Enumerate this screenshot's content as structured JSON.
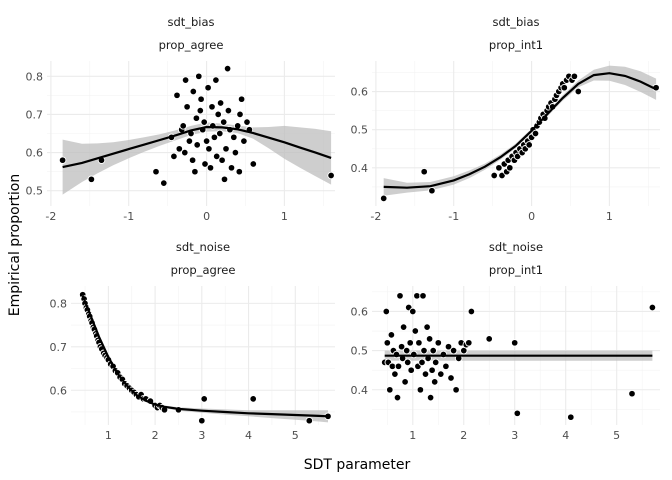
{
  "chart_data": {
    "type": "scatter",
    "xlabel": "SDT parameter",
    "ylabel": "Empirical proportion",
    "colors": {
      "points": "#000000",
      "point_outline": "#ffffff",
      "fit": "#000000",
      "band": "#bdbdbd",
      "grid": "#ebebeb"
    },
    "panels": [
      {
        "strip_top": "sdt_bias",
        "strip_bottom": "prop_agree",
        "xlim": [
          -2.05,
          1.65
        ],
        "ylim": [
          0.46,
          0.84
        ],
        "xticks": [
          -2,
          -1,
          0,
          1
        ],
        "yticks": [
          0.5,
          0.6,
          0.7,
          0.8
        ],
        "points": [
          [
            -1.85,
            0.58
          ],
          [
            -1.48,
            0.53
          ],
          [
            -1.35,
            0.58
          ],
          [
            -0.65,
            0.55
          ],
          [
            -0.55,
            0.52
          ],
          [
            -0.45,
            0.64
          ],
          [
            -0.42,
            0.59
          ],
          [
            -0.38,
            0.75
          ],
          [
            -0.35,
            0.61
          ],
          [
            -0.32,
            0.66
          ],
          [
            -0.3,
            0.67
          ],
          [
            -0.28,
            0.6
          ],
          [
            -0.27,
            0.79
          ],
          [
            -0.25,
            0.72
          ],
          [
            -0.22,
            0.63
          ],
          [
            -0.2,
            0.65
          ],
          [
            -0.18,
            0.58
          ],
          [
            -0.17,
            0.76
          ],
          [
            -0.15,
            0.55
          ],
          [
            -0.13,
            0.69
          ],
          [
            -0.12,
            0.62
          ],
          [
            -0.1,
            0.8
          ],
          [
            -0.08,
            0.71
          ],
          [
            -0.07,
            0.74
          ],
          [
            -0.05,
            0.66
          ],
          [
            -0.03,
            0.68
          ],
          [
            -0.02,
            0.57
          ],
          [
            0.0,
            0.63
          ],
          [
            0.02,
            0.77
          ],
          [
            0.03,
            0.61
          ],
          [
            0.05,
            0.56
          ],
          [
            0.07,
            0.72
          ],
          [
            0.08,
            0.67
          ],
          [
            0.1,
            0.64
          ],
          [
            0.12,
            0.79
          ],
          [
            0.13,
            0.59
          ],
          [
            0.15,
            0.7
          ],
          [
            0.17,
            0.65
          ],
          [
            0.18,
            0.73
          ],
          [
            0.2,
            0.58
          ],
          [
            0.22,
            0.68
          ],
          [
            0.23,
            0.53
          ],
          [
            0.25,
            0.61
          ],
          [
            0.27,
            0.82
          ],
          [
            0.28,
            0.71
          ],
          [
            0.3,
            0.66
          ],
          [
            0.32,
            0.56
          ],
          [
            0.35,
            0.64
          ],
          [
            0.37,
            0.6
          ],
          [
            0.4,
            0.67
          ],
          [
            0.42,
            0.55
          ],
          [
            0.43,
            0.7
          ],
          [
            0.45,
            0.74
          ],
          [
            0.48,
            0.63
          ],
          [
            0.52,
            0.68
          ],
          [
            0.55,
            0.66
          ],
          [
            0.6,
            0.57
          ],
          [
            1.6,
            0.54
          ]
        ],
        "fit": {
          "x": [
            -1.85,
            -1.6,
            -1.4,
            -1.2,
            -1.0,
            -0.8,
            -0.6,
            -0.4,
            -0.2,
            0.0,
            0.2,
            0.4,
            0.6,
            0.8,
            1.0,
            1.2,
            1.4,
            1.6
          ],
          "y": [
            0.562,
            0.573,
            0.585,
            0.597,
            0.609,
            0.621,
            0.633,
            0.645,
            0.658,
            0.667,
            0.666,
            0.661,
            0.651,
            0.639,
            0.627,
            0.613,
            0.6,
            0.586
          ],
          "lower": [
            0.49,
            0.523,
            0.546,
            0.567,
            0.585,
            0.602,
            0.618,
            0.632,
            0.646,
            0.655,
            0.656,
            0.651,
            0.636,
            0.611,
            0.584,
            0.56,
            0.538,
            0.516
          ],
          "upper": [
            0.634,
            0.623,
            0.624,
            0.627,
            0.633,
            0.64,
            0.648,
            0.658,
            0.67,
            0.679,
            0.676,
            0.671,
            0.666,
            0.667,
            0.67,
            0.666,
            0.662,
            0.656
          ]
        }
      },
      {
        "strip_top": "sdt_bias",
        "strip_bottom": "prop_int1",
        "xlim": [
          -2.05,
          1.65
        ],
        "ylim": [
          0.3,
          0.68
        ],
        "xticks": [
          -2,
          -1,
          0,
          1
        ],
        "yticks": [
          0.4,
          0.5,
          0.6
        ],
        "points": [
          [
            -1.9,
            0.32
          ],
          [
            -1.38,
            0.39
          ],
          [
            -1.28,
            0.34
          ],
          [
            -0.48,
            0.38
          ],
          [
            -0.42,
            0.4
          ],
          [
            -0.38,
            0.38
          ],
          [
            -0.35,
            0.41
          ],
          [
            -0.32,
            0.39
          ],
          [
            -0.3,
            0.42
          ],
          [
            -0.28,
            0.4
          ],
          [
            -0.25,
            0.43
          ],
          [
            -0.22,
            0.42
          ],
          [
            -0.2,
            0.44
          ],
          [
            -0.18,
            0.43
          ],
          [
            -0.15,
            0.45
          ],
          [
            -0.12,
            0.44
          ],
          [
            -0.1,
            0.46
          ],
          [
            -0.08,
            0.45
          ],
          [
            -0.05,
            0.47
          ],
          [
            -0.03,
            0.46
          ],
          [
            0.0,
            0.48
          ],
          [
            0.02,
            0.5
          ],
          [
            0.05,
            0.49
          ],
          [
            0.07,
            0.51
          ],
          [
            0.1,
            0.52
          ],
          [
            0.12,
            0.53
          ],
          [
            0.15,
            0.54
          ],
          [
            0.17,
            0.53
          ],
          [
            0.2,
            0.55
          ],
          [
            0.22,
            0.56
          ],
          [
            0.25,
            0.57
          ],
          [
            0.27,
            0.56
          ],
          [
            0.3,
            0.58
          ],
          [
            0.32,
            0.59
          ],
          [
            0.35,
            0.6
          ],
          [
            0.38,
            0.61
          ],
          [
            0.4,
            0.62
          ],
          [
            0.42,
            0.61
          ],
          [
            0.45,
            0.63
          ],
          [
            0.48,
            0.64
          ],
          [
            0.52,
            0.63
          ],
          [
            0.55,
            0.64
          ],
          [
            0.6,
            0.6
          ],
          [
            1.6,
            0.61
          ]
        ],
        "fit": {
          "x": [
            -1.9,
            -1.6,
            -1.3,
            -1.0,
            -0.8,
            -0.6,
            -0.4,
            -0.2,
            0.0,
            0.2,
            0.4,
            0.6,
            0.8,
            1.0,
            1.2,
            1.4,
            1.6
          ],
          "y": [
            0.35,
            0.348,
            0.352,
            0.367,
            0.383,
            0.403,
            0.428,
            0.458,
            0.497,
            0.54,
            0.583,
            0.62,
            0.643,
            0.648,
            0.641,
            0.626,
            0.606
          ],
          "lower": [
            0.327,
            0.335,
            0.341,
            0.356,
            0.373,
            0.395,
            0.421,
            0.452,
            0.491,
            0.534,
            0.576,
            0.611,
            0.629,
            0.628,
            0.617,
            0.599,
            0.578
          ],
          "upper": [
            0.373,
            0.361,
            0.363,
            0.378,
            0.393,
            0.411,
            0.435,
            0.464,
            0.503,
            0.546,
            0.59,
            0.629,
            0.657,
            0.668,
            0.665,
            0.653,
            0.634
          ]
        }
      },
      {
        "strip_top": "sdt_noise",
        "strip_bottom": "prop_agree",
        "xlim": [
          0.2,
          5.85
        ],
        "ylim": [
          0.52,
          0.84
        ],
        "xticks": [
          1,
          2,
          3,
          4,
          5
        ],
        "yticks": [
          0.6,
          0.7,
          0.8
        ],
        "points": [
          [
            0.45,
            0.82
          ],
          [
            0.48,
            0.81
          ],
          [
            0.5,
            0.8
          ],
          [
            0.53,
            0.79
          ],
          [
            0.55,
            0.785
          ],
          [
            0.58,
            0.775
          ],
          [
            0.6,
            0.77
          ],
          [
            0.63,
            0.76
          ],
          [
            0.65,
            0.755
          ],
          [
            0.68,
            0.745
          ],
          [
            0.7,
            0.74
          ],
          [
            0.73,
            0.73
          ],
          [
            0.75,
            0.725
          ],
          [
            0.78,
            0.715
          ],
          [
            0.8,
            0.71
          ],
          [
            0.83,
            0.7
          ],
          [
            0.86,
            0.695
          ],
          [
            0.9,
            0.685
          ],
          [
            0.93,
            0.68
          ],
          [
            0.97,
            0.675
          ],
          [
            1.0,
            0.67
          ],
          [
            1.05,
            0.66
          ],
          [
            1.1,
            0.655
          ],
          [
            1.15,
            0.645
          ],
          [
            1.2,
            0.64
          ],
          [
            1.25,
            0.63
          ],
          [
            1.3,
            0.625
          ],
          [
            1.35,
            0.615
          ],
          [
            1.4,
            0.61
          ],
          [
            1.45,
            0.605
          ],
          [
            1.5,
            0.6
          ],
          [
            1.55,
            0.595
          ],
          [
            1.6,
            0.59
          ],
          [
            1.65,
            0.585
          ],
          [
            1.7,
            0.59
          ],
          [
            1.75,
            0.58
          ],
          [
            1.8,
            0.58
          ],
          [
            1.9,
            0.575
          ],
          [
            2.0,
            0.565
          ],
          [
            2.05,
            0.56
          ],
          [
            2.1,
            0.565
          ],
          [
            2.15,
            0.56
          ],
          [
            2.2,
            0.555
          ],
          [
            2.5,
            0.555
          ],
          [
            3.0,
            0.53
          ],
          [
            3.05,
            0.58
          ],
          [
            4.1,
            0.58
          ],
          [
            5.3,
            0.53
          ],
          [
            5.7,
            0.54
          ]
        ],
        "fit": {
          "x": [
            0.45,
            0.6,
            0.8,
            1.0,
            1.2,
            1.4,
            1.6,
            1.8,
            2.0,
            2.2,
            2.5,
            3.0,
            3.5,
            4.0,
            4.5,
            5.0,
            5.5,
            5.7
          ],
          "y": [
            0.818,
            0.777,
            0.723,
            0.676,
            0.638,
            0.61,
            0.589,
            0.576,
            0.567,
            0.562,
            0.557,
            0.553,
            0.55,
            0.547,
            0.545,
            0.543,
            0.541,
            0.54
          ],
          "lower": [
            0.813,
            0.773,
            0.72,
            0.673,
            0.636,
            0.608,
            0.587,
            0.574,
            0.565,
            0.559,
            0.553,
            0.548,
            0.544,
            0.54,
            0.536,
            0.532,
            0.528,
            0.526
          ],
          "upper": [
            0.823,
            0.781,
            0.726,
            0.679,
            0.64,
            0.612,
            0.591,
            0.578,
            0.569,
            0.565,
            0.561,
            0.558,
            0.556,
            0.554,
            0.554,
            0.554,
            0.554,
            0.554
          ]
        }
      },
      {
        "strip_top": "sdt_noise",
        "strip_bottom": "prop_int1",
        "xlim": [
          0.2,
          5.85
        ],
        "ylim": [
          0.31,
          0.665
        ],
        "xticks": [
          1,
          2,
          3,
          4,
          5
        ],
        "yticks": [
          0.4,
          0.5,
          0.6
        ],
        "points": [
          [
            0.45,
            0.47
          ],
          [
            0.48,
            0.6
          ],
          [
            0.5,
            0.52
          ],
          [
            0.52,
            0.47
          ],
          [
            0.55,
            0.4
          ],
          [
            0.58,
            0.54
          ],
          [
            0.6,
            0.46
          ],
          [
            0.62,
            0.5
          ],
          [
            0.65,
            0.44
          ],
          [
            0.68,
            0.49
          ],
          [
            0.7,
            0.38
          ],
          [
            0.72,
            0.46
          ],
          [
            0.75,
            0.64
          ],
          [
            0.78,
            0.51
          ],
          [
            0.8,
            0.48
          ],
          [
            0.82,
            0.56
          ],
          [
            0.85,
            0.42
          ],
          [
            0.88,
            0.5
          ],
          [
            0.9,
            0.47
          ],
          [
            0.92,
            0.61
          ],
          [
            0.95,
            0.52
          ],
          [
            0.97,
            0.45
          ],
          [
            1.0,
            0.6
          ],
          [
            1.02,
            0.49
          ],
          [
            1.05,
            0.55
          ],
          [
            1.08,
            0.64
          ],
          [
            1.1,
            0.46
          ],
          [
            1.12,
            0.52
          ],
          [
            1.15,
            0.4
          ],
          [
            1.18,
            0.47
          ],
          [
            1.2,
            0.64
          ],
          [
            1.22,
            0.5
          ],
          [
            1.25,
            0.44
          ],
          [
            1.28,
            0.56
          ],
          [
            1.3,
            0.48
          ],
          [
            1.33,
            0.53
          ],
          [
            1.35,
            0.38
          ],
          [
            1.38,
            0.45
          ],
          [
            1.4,
            0.5
          ],
          [
            1.43,
            0.42
          ],
          [
            1.45,
            0.47
          ],
          [
            1.5,
            0.52
          ],
          [
            1.55,
            0.44
          ],
          [
            1.6,
            0.49
          ],
          [
            1.65,
            0.46
          ],
          [
            1.7,
            0.51
          ],
          [
            1.75,
            0.43
          ],
          [
            1.8,
            0.5
          ],
          [
            1.85,
            0.4
          ],
          [
            1.9,
            0.48
          ],
          [
            1.95,
            0.52
          ],
          [
            2.0,
            0.5
          ],
          [
            2.05,
            0.515
          ],
          [
            2.1,
            0.52
          ],
          [
            2.15,
            0.6
          ],
          [
            2.5,
            0.53
          ],
          [
            3.0,
            0.52
          ],
          [
            3.05,
            0.34
          ],
          [
            4.1,
            0.33
          ],
          [
            5.3,
            0.39
          ],
          [
            5.7,
            0.61
          ]
        ],
        "fit": {
          "x": [
            0.45,
            5.7
          ],
          "y": [
            0.487,
            0.487
          ],
          "lower": [
            0.474,
            0.474
          ],
          "upper": [
            0.5,
            0.5
          ]
        }
      }
    ]
  }
}
